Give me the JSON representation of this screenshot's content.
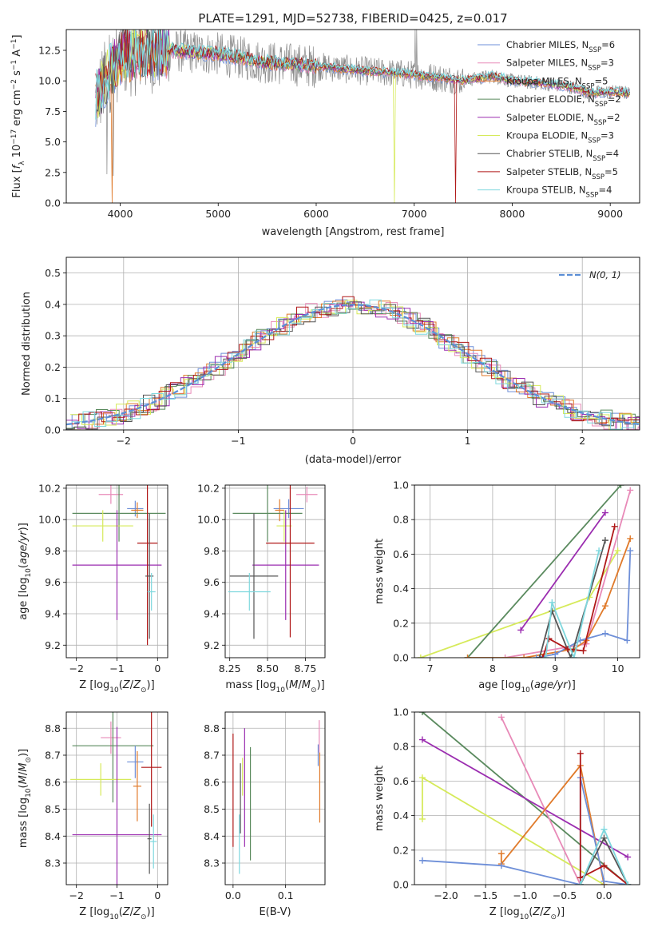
{
  "figure_title": "PLATE=1291, MJD=52738, FIBERID=0425, z=0.017",
  "colors": {
    "Chabrier MILES": "#6e8fd8",
    "Salpeter MILES": "#e88ab8",
    "Kroupa MILES": "#e07a2a",
    "Chabrier ELODIE": "#5a8a5e",
    "Salpeter ELODIE": "#9b2db0",
    "Kroupa ELODIE": "#d6ea5a",
    "Chabrier STELIB": "#555555",
    "Salpeter STELIB": "#b01818",
    "Kroupa STELIB": "#7fd8de",
    "grey_spectrum": "#888888",
    "normal_curve": "#5b8fd6"
  },
  "chart_data": [
    {
      "id": "spectrum",
      "type": "line",
      "title": "PLATE=1291, MJD=52738, FIBERID=0425, z=0.017",
      "xlabel": "wavelength [Angstrom, rest frame]",
      "ylabel": "Flux [f_λ 10^-17 erg cm^-2 s^-1 A^-1]",
      "xlim": [
        3450,
        9300
      ],
      "ylim": [
        0,
        14.2
      ],
      "xticks": [
        4000,
        5000,
        6000,
        7000,
        8000,
        9000
      ],
      "yticks": [
        0.0,
        2.5,
        5.0,
        7.5,
        10.0,
        12.5
      ],
      "grid": false,
      "legend_position": "top-right",
      "continuum_points": [
        [
          3750,
          8.5
        ],
        [
          3900,
          10.8
        ],
        [
          4000,
          12.0
        ],
        [
          4200,
          12.3
        ],
        [
          4500,
          12.5
        ],
        [
          5000,
          12.2
        ],
        [
          5500,
          11.5
        ],
        [
          6000,
          11.2
        ],
        [
          6500,
          10.8
        ],
        [
          7000,
          10.5
        ],
        [
          7500,
          10.0
        ],
        [
          7800,
          10.4
        ],
        [
          8000,
          10.0
        ],
        [
          8300,
          9.8
        ],
        [
          8600,
          9.5
        ],
        [
          8800,
          9.0
        ],
        [
          9000,
          9.1
        ],
        [
          9200,
          9.0
        ]
      ],
      "legend": [
        {
          "label": "Chabrier MILES, N",
          "nssp": 6
        },
        {
          "label": "Salpeter MILES, N",
          "nssp": 3
        },
        {
          "label": "Kroupa MILES, N",
          "nssp": 5
        },
        {
          "label": "Chabrier ELODIE, N",
          "nssp": 2
        },
        {
          "label": "Salpeter ELODIE, N",
          "nssp": 2
        },
        {
          "label": "Kroupa ELODIE, N",
          "nssp": 3
        },
        {
          "label": "Chabrier STELIB, N",
          "nssp": 4
        },
        {
          "label": "Salpeter STELIB, N",
          "nssp": 5
        },
        {
          "label": "Kroupa STELIB, N",
          "nssp": 4
        }
      ],
      "legend_subscript": "SSP"
    },
    {
      "id": "residual_histogram",
      "type": "area",
      "xlabel": "(data-model)/error",
      "ylabel": "Normed distribution",
      "xlim": [
        -2.5,
        2.5
      ],
      "ylim": [
        0,
        0.55
      ],
      "xticks": [
        -2,
        -1,
        0,
        1,
        2
      ],
      "yticks": [
        0.0,
        0.1,
        0.2,
        0.3,
        0.4,
        0.5
      ],
      "grid": true,
      "legend_position": "top-right",
      "legend": "N(0, 1)",
      "bin_width": 0.1
    },
    {
      "id": "age_vs_Z",
      "type": "scatter",
      "xlabel": "Z [log10(Z/Z⊙)]",
      "ylabel": "age  [log10(age/yr)]",
      "xlim": [
        -2.25,
        0.25
      ],
      "ylim": [
        9.12,
        10.22
      ],
      "xticks": [
        -2,
        -1,
        0
      ],
      "yticks": [
        9.2,
        9.4,
        9.6,
        9.8,
        10.0,
        10.2
      ],
      "grid": true,
      "errorbars": [
        {
          "series": "Salpeter MILES",
          "x": -1.15,
          "xerr": 0.3,
          "y": 10.16,
          "yerr": 0.06
        },
        {
          "series": "Chabrier MILES",
          "x": -0.55,
          "xerr": 0.2,
          "y": 10.07,
          "yerr": 0.05
        },
        {
          "series": "Kroupa MILES",
          "x": -0.5,
          "xerr": 0.15,
          "y": 10.06,
          "yerr": 0.05
        },
        {
          "series": "Chabrier ELODIE",
          "x": -0.95,
          "xerr": 1.15,
          "y": 10.04,
          "yerr": 0.18
        },
        {
          "series": "Kroupa ELODIE",
          "x": -1.35,
          "xerr": 0.75,
          "y": 9.96,
          "yerr": 0.1
        },
        {
          "series": "Salpeter ELODIE",
          "x": -1.0,
          "xerr": 1.1,
          "y": 9.71,
          "yerr": 0.35
        },
        {
          "series": "Salpeter STELIB",
          "x": -0.25,
          "xerr": 0.25,
          "y": 9.85,
          "yerr": 0.65
        },
        {
          "series": "Chabrier STELIB",
          "x": -0.2,
          "xerr": 0.1,
          "y": 9.64,
          "yerr": 0.4
        },
        {
          "series": "Kroupa STELIB",
          "x": -0.15,
          "xerr": 0.1,
          "y": 9.54,
          "yerr": 0.12
        }
      ]
    },
    {
      "id": "age_vs_mass",
      "type": "scatter",
      "xlabel": "mass [log10(M/M⊙)]",
      "ylabel": "",
      "xlim": [
        8.22,
        8.88
      ],
      "ylim": [
        9.12,
        10.22
      ],
      "xticks": [
        8.25,
        8.5,
        8.75
      ],
      "yticks": [
        9.2,
        9.4,
        9.6,
        9.8,
        10.0,
        10.2
      ],
      "grid": true,
      "errorbars": [
        {
          "series": "Salpeter MILES",
          "x": 8.76,
          "xerr": 0.07,
          "y": 10.16,
          "yerr": 0.05
        },
        {
          "series": "Chabrier MILES",
          "x": 8.64,
          "xerr": 0.1,
          "y": 10.07,
          "yerr": 0.06
        },
        {
          "series": "Kroupa MILES",
          "x": 8.58,
          "xerr": 0.03,
          "y": 10.06,
          "yerr": 0.07
        },
        {
          "series": "Chabrier ELODIE",
          "x": 8.5,
          "xerr": 0.23,
          "y": 10.04,
          "yerr": 0.18
        },
        {
          "series": "Kroupa ELODIE",
          "x": 8.61,
          "xerr": 0.05,
          "y": 9.96,
          "yerr": 0.1
        },
        {
          "series": "Salpeter ELODIE",
          "x": 8.62,
          "xerr": 0.22,
          "y": 9.71,
          "yerr": 0.35
        },
        {
          "series": "Salpeter STELIB",
          "x": 8.65,
          "xerr": 0.16,
          "y": 9.85,
          "yerr": 0.6
        },
        {
          "series": "Chabrier STELIB",
          "x": 8.41,
          "xerr": 0.16,
          "y": 9.64,
          "yerr": 0.4
        },
        {
          "series": "Kroupa STELIB",
          "x": 8.38,
          "xerr": 0.14,
          "y": 9.54,
          "yerr": 0.12
        }
      ]
    },
    {
      "id": "massweight_vs_age",
      "type": "line",
      "xlabel": "age  [log10(age/yr)]",
      "ylabel": "mass weight",
      "xlim": [
        6.75,
        10.35
      ],
      "ylim": [
        0,
        1.0
      ],
      "xticks": [
        7,
        8,
        9,
        10
      ],
      "yticks": [
        0.0,
        0.2,
        0.4,
        0.6,
        0.8,
        1.0
      ],
      "grid": true,
      "series": [
        {
          "name": "Kroupa ELODIE",
          "points": [
            [
              6.85,
              0.0
            ],
            [
              9.55,
              0.35
            ],
            [
              10.0,
              0.62
            ]
          ]
        },
        {
          "name": "Chabrier ELODIE",
          "points": [
            [
              7.6,
              0.0
            ],
            [
              10.05,
              1.0
            ]
          ]
        },
        {
          "name": "Salpeter ELODIE",
          "points": [
            [
              8.45,
              0.16
            ],
            [
              9.8,
              0.84
            ]
          ]
        },
        {
          "name": "Salpeter MILES",
          "points": [
            [
              8.2,
              0.0
            ],
            [
              9.5,
              0.08
            ],
            [
              10.2,
              0.97
            ]
          ]
        },
        {
          "name": "Kroupa MILES",
          "points": [
            [
              7.6,
              0.0
            ],
            [
              8.5,
              0.0
            ],
            [
              9.3,
              0.05
            ],
            [
              9.5,
              0.1
            ],
            [
              9.8,
              0.3
            ],
            [
              10.2,
              0.69
            ]
          ]
        },
        {
          "name": "Chabrier MILES",
          "points": [
            [
              8.7,
              0.0
            ],
            [
              9.0,
              0.02
            ],
            [
              9.4,
              0.1
            ],
            [
              9.8,
              0.14
            ],
            [
              10.15,
              0.1
            ],
            [
              10.2,
              0.62
            ]
          ]
        },
        {
          "name": "Chabrier STELIB",
          "points": [
            [
              8.75,
              0.0
            ],
            [
              8.95,
              0.27
            ],
            [
              9.25,
              0.0
            ],
            [
              9.8,
              0.68
            ]
          ]
        },
        {
          "name": "Salpeter STELIB",
          "points": [
            [
              8.8,
              0.0
            ],
            [
              8.9,
              0.11
            ],
            [
              9.2,
              0.05
            ],
            [
              9.45,
              0.04
            ],
            [
              9.95,
              0.76
            ]
          ]
        },
        {
          "name": "Kroupa STELIB",
          "points": [
            [
              8.85,
              0.0
            ],
            [
              8.95,
              0.32
            ],
            [
              9.3,
              0.0
            ],
            [
              9.7,
              0.62
            ]
          ]
        }
      ]
    },
    {
      "id": "mass_vs_Z",
      "type": "scatter",
      "xlabel": "Z [log10(Z/Z⊙)]",
      "ylabel": "mass [log10(M/M⊙)]",
      "xlim": [
        -2.25,
        0.25
      ],
      "ylim": [
        8.22,
        8.86
      ],
      "xticks": [
        -2,
        -1,
        0
      ],
      "yticks": [
        8.3,
        8.4,
        8.5,
        8.6,
        8.7,
        8.8
      ],
      "grid": true,
      "errorbars": [
        {
          "series": "Salpeter MILES",
          "x": -1.15,
          "xerr": 0.25,
          "y": 8.765,
          "yerr": 0.06
        },
        {
          "series": "Chabrier ELODIE",
          "x": -1.1,
          "xerr": 1.0,
          "y": 8.735,
          "yerr": 0.21
        },
        {
          "series": "Chabrier MILES",
          "x": -0.55,
          "xerr": 0.2,
          "y": 8.675,
          "yerr": 0.06
        },
        {
          "series": "Salpeter STELIB",
          "x": -0.15,
          "xerr": 0.25,
          "y": 8.655,
          "yerr": 0.22
        },
        {
          "series": "Kroupa ELODIE",
          "x": -1.4,
          "xerr": 0.75,
          "y": 8.61,
          "yerr": 0.06
        },
        {
          "series": "Kroupa MILES",
          "x": -0.5,
          "xerr": 0.1,
          "y": 8.585,
          "yerr": 0.13
        },
        {
          "series": "Salpeter ELODIE",
          "x": -1.0,
          "xerr": 1.1,
          "y": 8.405,
          "yerr": 0.4
        },
        {
          "series": "Chabrier STELIB",
          "x": -0.2,
          "xerr": 0.05,
          "y": 8.39,
          "yerr": 0.13
        },
        {
          "series": "Kroupa STELIB",
          "x": -0.1,
          "xerr": 0.08,
          "y": 8.38,
          "yerr": 0.1
        }
      ]
    },
    {
      "id": "mass_vs_ebv",
      "type": "scatter",
      "xlabel": "E(B-V)",
      "ylabel": "",
      "xlim": [
        -0.015,
        0.175
      ],
      "ylim": [
        8.22,
        8.86
      ],
      "xticks": [
        0.0,
        0.1
      ],
      "yticks": [
        8.3,
        8.4,
        8.5,
        8.6,
        8.7,
        8.8
      ],
      "grid": true,
      "errorbars": [
        {
          "series": "Salpeter STELIB",
          "x": 0.0,
          "y": 8.57,
          "yerr": 0.21
        },
        {
          "series": "Salpeter ELODIE",
          "x": 0.022,
          "y": 8.58,
          "yerr": 0.22
        },
        {
          "series": "Kroupa STELIB",
          "x": 0.012,
          "y": 8.37,
          "yerr": 0.11
        },
        {
          "series": "Chabrier STELIB",
          "x": 0.014,
          "y": 8.54,
          "yerr": 0.13
        },
        {
          "series": "Kroupa ELODIE",
          "x": 0.018,
          "y": 8.62,
          "yerr": 0.07
        },
        {
          "series": "Chabrier ELODIE",
          "x": 0.033,
          "y": 8.52,
          "yerr": 0.21
        },
        {
          "series": "Chabrier MILES",
          "x": 0.162,
          "y": 8.7,
          "yerr": 0.04
        },
        {
          "series": "Salpeter MILES",
          "x": 0.164,
          "y": 8.77,
          "yerr": 0.06
        },
        {
          "series": "Kroupa MILES",
          "x": 0.165,
          "y": 8.58,
          "yerr": 0.13
        }
      ]
    },
    {
      "id": "massweight_vs_Z",
      "type": "line",
      "xlabel": "Z [log10(Z/Z⊙)]",
      "ylabel": "mass weight",
      "xlim": [
        -2.4,
        0.45
      ],
      "ylim": [
        0,
        1.0
      ],
      "xticks": [
        -2.0,
        -1.5,
        -1.0,
        -0.5,
        0.0
      ],
      "yticks": [
        0.0,
        0.2,
        0.4,
        0.6,
        0.8,
        1.0
      ],
      "grid": true,
      "series": [
        {
          "name": "Chabrier ELODIE",
          "points": [
            [
              -2.3,
              1.0
            ],
            [
              0.3,
              0.0
            ]
          ]
        },
        {
          "name": "Salpeter ELODIE",
          "points": [
            [
              -2.3,
              0.84
            ],
            [
              0.3,
              0.16
            ]
          ]
        },
        {
          "name": "Kroupa ELODIE",
          "points": [
            [
              -2.3,
              0.38
            ],
            [
              -2.3,
              0.62
            ],
            [
              0.0,
              0.0
            ]
          ]
        },
        {
          "name": "Salpeter MILES",
          "points": [
            [
              -1.3,
              0.97
            ],
            [
              -0.3,
              0.0
            ]
          ]
        },
        {
          "name": "Kroupa MILES",
          "points": [
            [
              -1.3,
              0.18
            ],
            [
              -1.3,
              0.12
            ],
            [
              -0.3,
              0.69
            ],
            [
              0.0,
              0.0
            ]
          ]
        },
        {
          "name": "Chabrier MILES",
          "points": [
            [
              -2.3,
              0.14
            ],
            [
              -1.3,
              0.11
            ],
            [
              -0.3,
              0.0
            ],
            [
              -0.3,
              0.62
            ],
            [
              0.0,
              0.02
            ],
            [
              0.3,
              0.0
            ]
          ]
        },
        {
          "name": "Salpeter STELIB",
          "points": [
            [
              -0.3,
              0.76
            ],
            [
              -0.3,
              0.04
            ],
            [
              0.0,
              0.11
            ],
            [
              0.3,
              0.0
            ]
          ]
        },
        {
          "name": "Chabrier STELIB",
          "points": [
            [
              -0.3,
              0.0
            ],
            [
              0.0,
              0.27
            ],
            [
              0.3,
              0.0
            ]
          ]
        },
        {
          "name": "Kroupa STELIB",
          "points": [
            [
              -0.3,
              0.0
            ],
            [
              0.0,
              0.32
            ],
            [
              0.3,
              0.0
            ]
          ]
        }
      ]
    }
  ]
}
